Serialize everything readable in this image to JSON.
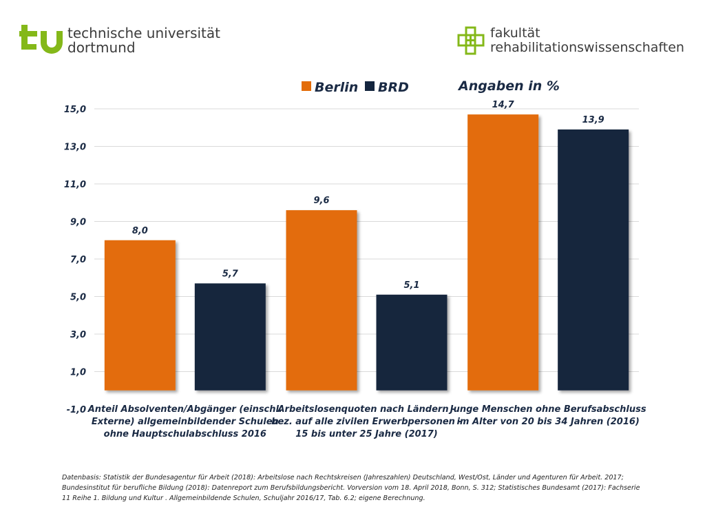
{
  "header": {
    "tu_logo_lines": [
      "technische universität",
      "dortmund"
    ],
    "faculty_logo_lines": [
      "fakultät",
      "rehabilitationswissenschaften"
    ]
  },
  "colors": {
    "berlin": "#E36C09",
    "brd": "#14253E",
    "tu_green": "#84B819",
    "grid": "#D9D9D9"
  },
  "chart_data": {
    "type": "bar",
    "subtitle": "Angaben in %",
    "categories": [
      [
        "Anteil Absolventen/Abgänger (einschl.",
        "Externe) allgemeinbildender Schulen",
        "ohne Hauptschulabschluss 2016"
      ],
      [
        "Arbeitslosenquoten nach Ländern -",
        "bez. auf alle zivilen Erwerbpersonen -",
        "15 bis unter 25 Jahre (2017)"
      ],
      [
        "Junge Menschen ohne Berufsabschluss",
        "im Alter von 20 bis 34 Jahren (2016)"
      ]
    ],
    "series": [
      {
        "name": "Berlin",
        "values": [
          8.0,
          9.6,
          14.7
        ],
        "labels": [
          "8,0",
          "9,6",
          "14,7"
        ]
      },
      {
        "name": "BRD",
        "values": [
          5.7,
          5.1,
          13.9
        ],
        "labels": [
          "5,7",
          "5,1",
          "13,9"
        ]
      }
    ],
    "ylim": [
      -1.0,
      15.0
    ],
    "yticks": [
      15.0,
      13.0,
      11.0,
      9.0,
      7.0,
      5.0,
      3.0,
      1.0,
      -1.0
    ],
    "ytick_labels": [
      "15,0",
      "13,0",
      "11,0",
      "9,0",
      "7,0",
      "5,0",
      "3,0",
      "1,0",
      "-1,0"
    ],
    "grid": true,
    "legend": "top-left"
  },
  "footer": {
    "source_lines": [
      "Datenbasis:  Statistik der Bundesagentur für Arbeit  (2018): Arbeitslose nach Rechtskreisen (Jahreszahlen) Deutschland, West/Ost, Länder und Agenturen für Arbeit. 2017;",
      "Bundesinstitut für berufliche Bildung (2018): Datenreport zum Berufsbildungsbericht. Vorversion vom 18. April 2018, Bonn, S. 312; Statistisches Bundesamt (2017): Fachserie",
      "11 Reihe 1. Bildung und Kultur . Allgemeinbildende Schulen, Schuljahr 2016/17, Tab. 6.2; eigene Berechnung."
    ]
  }
}
